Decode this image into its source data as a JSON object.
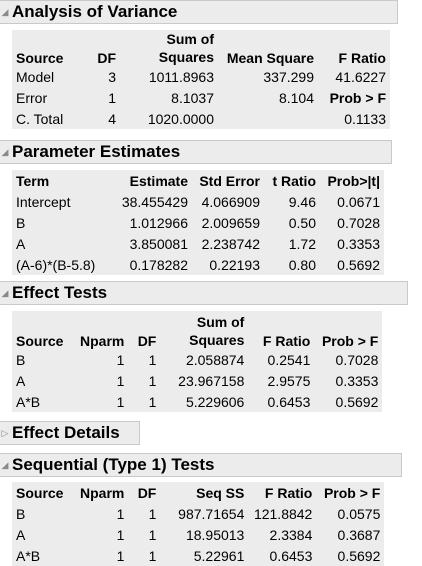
{
  "anova": {
    "title": "Analysis of Variance",
    "headers": {
      "source": "Source",
      "df": "DF",
      "ss_top": "Sum of",
      "ss_bottom": "Squares",
      "ms": "Mean Square",
      "f": "F Ratio",
      "prob": "Prob > F"
    },
    "rows": [
      {
        "source": "Model",
        "df": "3",
        "ss": "1011.8963",
        "ms": "337.299",
        "f": "41.6227"
      },
      {
        "source": "Error",
        "df": "1",
        "ss": "8.1037",
        "ms": "8.104"
      },
      {
        "source": "C. Total",
        "df": "4",
        "ss": "1020.0000",
        "ms": "",
        "f": ""
      }
    ],
    "prob_value": "0.1133"
  },
  "param": {
    "title": "Parameter Estimates",
    "headers": {
      "term": "Term",
      "estimate": "Estimate",
      "stderr": "Std Error",
      "t": "t Ratio",
      "prob": "Prob>|t|"
    },
    "rows": [
      {
        "term": "Intercept",
        "estimate": "38.455429",
        "stderr": "4.066909",
        "t": "9.46",
        "prob": "0.0671"
      },
      {
        "term": "B",
        "estimate": "1.012966",
        "stderr": "2.009659",
        "t": "0.50",
        "prob": "0.7028"
      },
      {
        "term": "A",
        "estimate": "3.850081",
        "stderr": "2.238742",
        "t": "1.72",
        "prob": "0.3353"
      },
      {
        "term": "(A-6)*(B-5.8)",
        "estimate": "0.178282",
        "stderr": "0.22193",
        "t": "0.80",
        "prob": "0.5692"
      }
    ]
  },
  "effect": {
    "title": "Effect Tests",
    "headers": {
      "source": "Source",
      "nparm": "Nparm",
      "df": "DF",
      "ss_top": "Sum of",
      "ss_bottom": "Squares",
      "f": "F Ratio",
      "prob": "Prob > F"
    },
    "rows": [
      {
        "source": "B",
        "nparm": "1",
        "df": "1",
        "ss": "2.058874",
        "f": "0.2541",
        "prob": "0.7028"
      },
      {
        "source": "A",
        "nparm": "1",
        "df": "1",
        "ss": "23.967158",
        "f": "2.9575",
        "prob": "0.3353"
      },
      {
        "source": "A*B",
        "nparm": "1",
        "df": "1",
        "ss": "5.229606",
        "f": "0.6453",
        "prob": "0.5692"
      }
    ]
  },
  "details": {
    "title": "Effect Details"
  },
  "sequential": {
    "title": "Sequential (Type 1) Tests",
    "headers": {
      "source": "Source",
      "nparm": "Nparm",
      "df": "DF",
      "ss": "Seq SS",
      "f": "F Ratio",
      "prob": "Prob > F"
    },
    "rows": [
      {
        "source": "B",
        "nparm": "1",
        "df": "1",
        "ss": "987.71654",
        "f": "121.8842",
        "prob": "0.0575"
      },
      {
        "source": "A",
        "nparm": "1",
        "df": "1",
        "ss": "18.95013",
        "f": "2.3384",
        "prob": "0.3687"
      },
      {
        "source": "A*B",
        "nparm": "1",
        "df": "1",
        "ss": "5.22961",
        "f": "0.6453",
        "prob": "0.5692"
      }
    ]
  },
  "icons": {
    "expanded": "disclosure-down-icon",
    "collapsed": "disclosure-right-icon"
  }
}
